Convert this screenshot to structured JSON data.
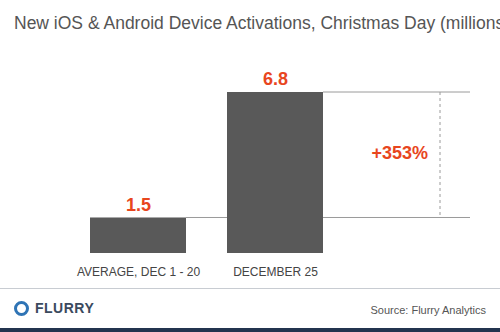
{
  "chart_data": {
    "type": "bar",
    "title": "New iOS & Android Device Activations, Christmas Day (millions)",
    "categories": [
      "AVERAGE, DEC 1 - 20",
      "DECEMBER 25"
    ],
    "values": [
      1.5,
      6.8
    ],
    "color": "#595959",
    "data_labels": true,
    "tick_labels": "x",
    "grid": false,
    "annotation": "+353%",
    "source": "Source: Flurry Analytics",
    "logo": "FLURRY"
  }
}
